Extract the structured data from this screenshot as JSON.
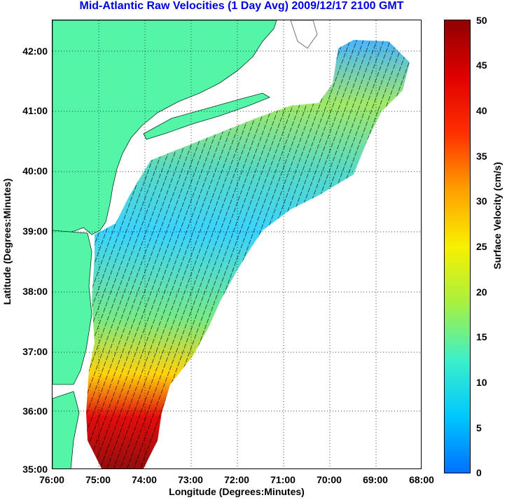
{
  "title": "Mid-Atlantic Raw Velocities (1 Day Avg) 2009/12/17 2100 GMT",
  "x_axis_label": "Longitude (Degrees:Minutes)",
  "y_axis_label": "Latitude (Degrees:Minutes)",
  "colorbar_label": "Surface Velocity (cm/s)",
  "lat_ticks": [
    "42:00",
    "41:00",
    "40:00",
    "39:00",
    "38:00",
    "37:00",
    "36:00",
    "35:00"
  ],
  "lon_ticks": [
    "76:00",
    "75:00",
    "74:00",
    "73:00",
    "72:00",
    "71:00",
    "70:00",
    "69:00",
    "68:00"
  ],
  "colorbar_ticks": [
    "50",
    "45",
    "40",
    "35",
    "30",
    "25",
    "20",
    "15",
    "10",
    "5",
    "0"
  ],
  "colors": {
    "land": "#55f5a8",
    "grid": "#000000",
    "title": "#0000dd",
    "colormap": [
      "#0070ff",
      "#00c8ff",
      "#3cf0c8",
      "#a8f040",
      "#f8f000",
      "#ffa000",
      "#ff3000",
      "#e00000",
      "#900000"
    ]
  },
  "colorbar_range": [
    0,
    50
  ],
  "map_extent": {
    "lon_west": 76,
    "lon_east": 68,
    "lat_south": 35,
    "lat_north": 42.5
  }
}
